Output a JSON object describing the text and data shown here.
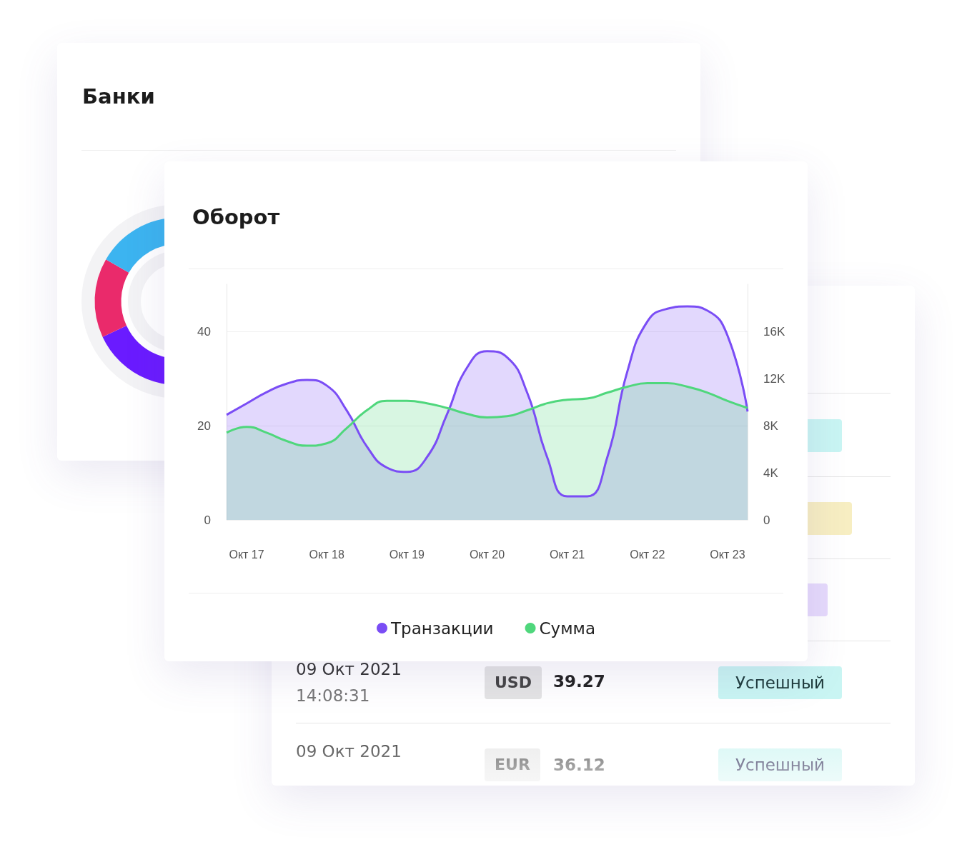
{
  "chart_data": [
    {
      "type": "other",
      "title": "Банки"
    },
    {
      "type": "area",
      "title": "Оборот",
      "categories": [
        null,
        "Окт 17",
        null,
        null,
        null,
        "Окт 18",
        null,
        null,
        null,
        "Окт 19",
        null,
        null,
        null,
        "Окт 20",
        null,
        null,
        null,
        "Окт 21",
        null,
        null,
        null,
        "Окт 22",
        null,
        null,
        null,
        "Окт 23",
        null
      ],
      "ylim": [
        0,
        50
      ],
      "yticks": [
        0,
        20,
        40
      ],
      "y2lim": [
        0,
        20000
      ],
      "y2ticks": [
        0,
        {
          "value": 4000,
          "label": "4K"
        },
        {
          "value": 8000,
          "label": "8K"
        },
        {
          "value": 12000,
          "label": "12K"
        },
        {
          "value": 16000,
          "label": "16K"
        }
      ],
      "grid": "y",
      "legend": "bottom",
      "marker": "none",
      "series": [
        {
          "name": "Транзакции",
          "color": "#7a4df5",
          "values": [
            22.3,
            24.7,
            27.1,
            28.9,
            29.7,
            28.5,
            23.2,
            15.6,
            11.1,
            10.2,
            13.3,
            22.4,
            32.3,
            35.8,
            34.5,
            27,
            13.3,
            5,
            5,
            13.3,
            31.5,
            42.1,
            44.8,
            45.3,
            44.4,
            39.1,
            23
          ]
        },
        {
          "name": "Сумма",
          "color": "#4fd77c",
          "axis": "y2",
          "values": [
            7400,
            7900,
            7400,
            6700,
            6300,
            6500,
            7800,
            9300,
            10100,
            10100,
            9900,
            9500,
            9000,
            8700,
            8800,
            9300,
            9900,
            10200,
            10300,
            10800,
            11300,
            11600,
            11600,
            11300,
            10800,
            10100,
            9500
          ]
        }
      ]
    },
    {
      "type": "other",
      "annotations": [
        "09 Окт 2021",
        "14:08:31",
        "USD",
        "39.27",
        "Успешный",
        "09 Окт 2021",
        "EUR",
        "36.12",
        "Успешный"
      ]
    }
  ]
}
